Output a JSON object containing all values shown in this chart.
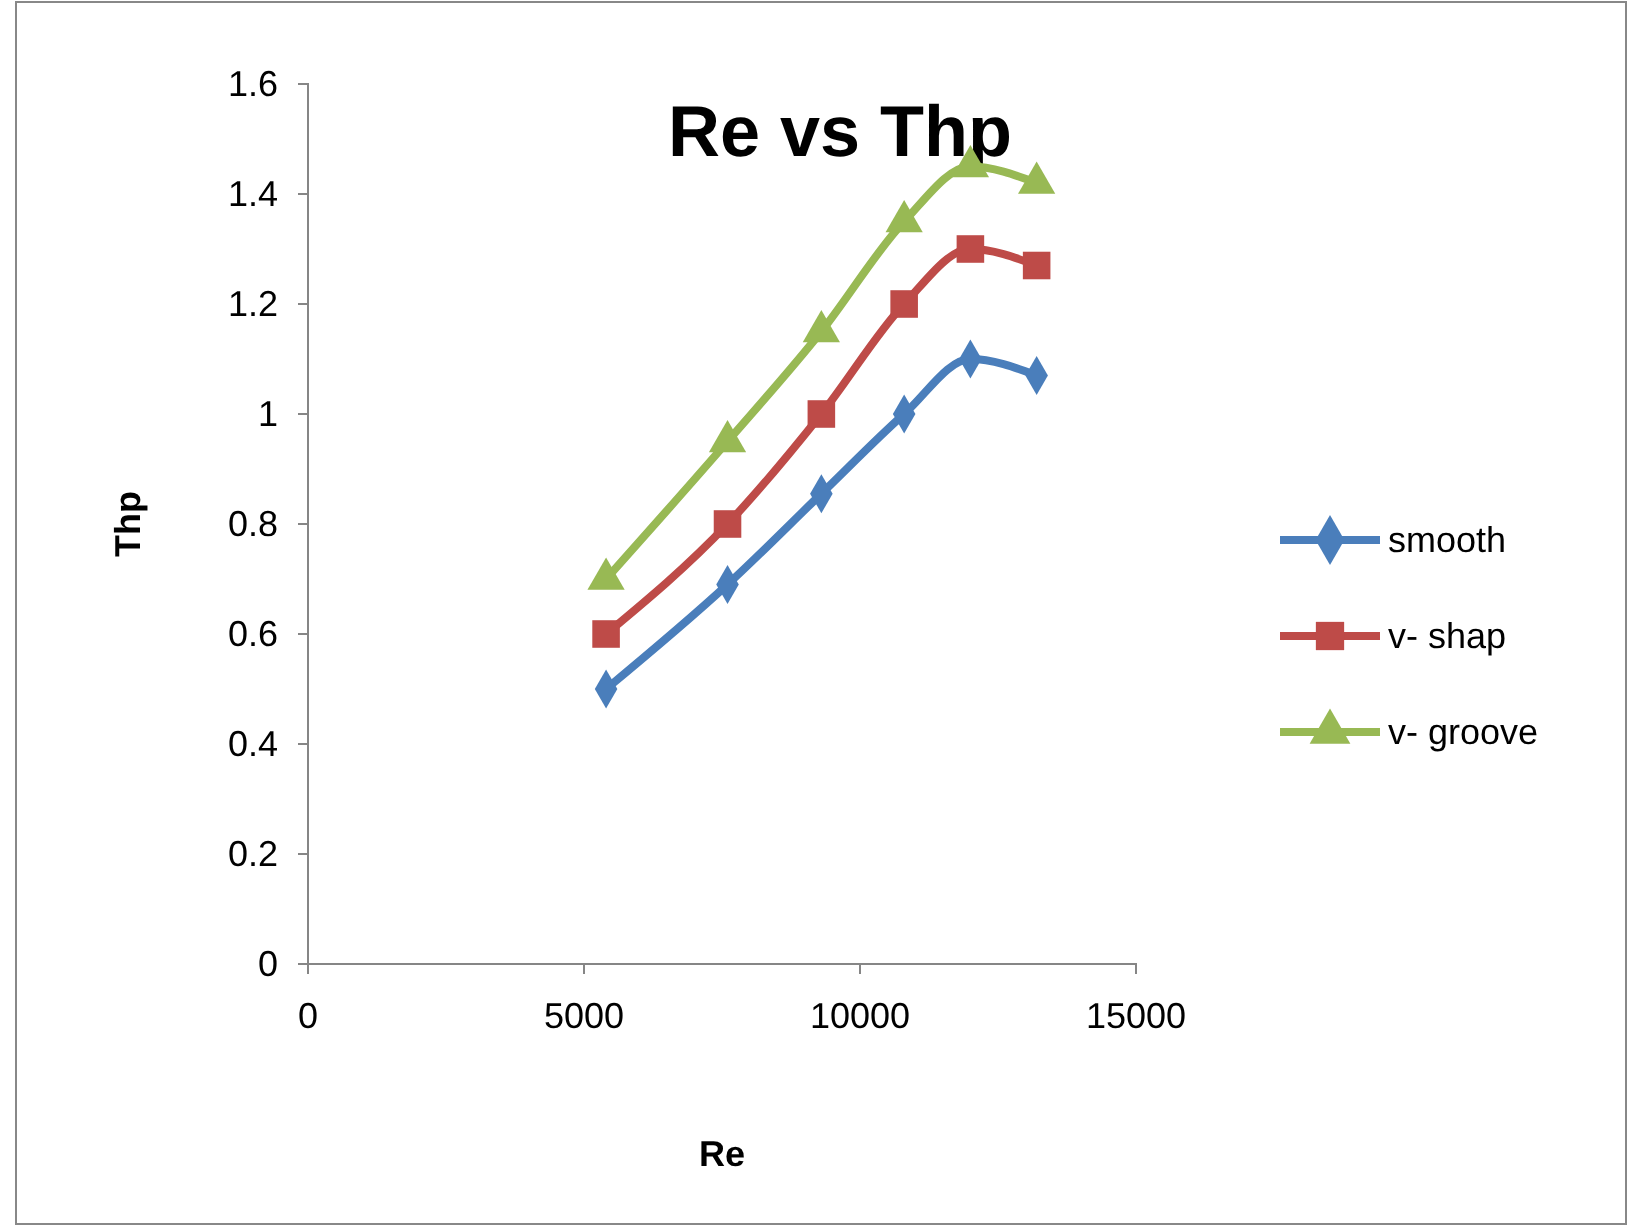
{
  "chart_data": {
    "type": "line",
    "title": "Re vs Thp",
    "xlabel": "Re",
    "ylabel": "Thp",
    "x": [
      5400,
      7600,
      9300,
      10800,
      12000,
      13200
    ],
    "series": [
      {
        "name": "smooth",
        "color": "#4a7ebb",
        "values": [
          0.5,
          0.69,
          0.855,
          1.0,
          1.1,
          1.07
        ],
        "marker": "diamond"
      },
      {
        "name": "v- shap",
        "color": "#be4b48",
        "values": [
          0.6,
          0.8,
          1.0,
          1.2,
          1.3,
          1.27
        ],
        "marker": "square"
      },
      {
        "name": "v- groove",
        "color": "#98b954",
        "values": [
          0.7,
          0.95,
          1.15,
          1.35,
          1.45,
          1.42
        ],
        "marker": "triangle"
      }
    ],
    "xlim": [
      0,
      15000
    ],
    "xticks": [
      0,
      5000,
      10000,
      15000
    ],
    "ylim": [
      0,
      1.6
    ],
    "yticks": [
      0,
      0.2,
      0.4,
      0.6,
      0.8,
      1,
      1.2,
      1.4,
      1.6
    ],
    "grid": false,
    "legend": "right",
    "line_style": "solid"
  }
}
